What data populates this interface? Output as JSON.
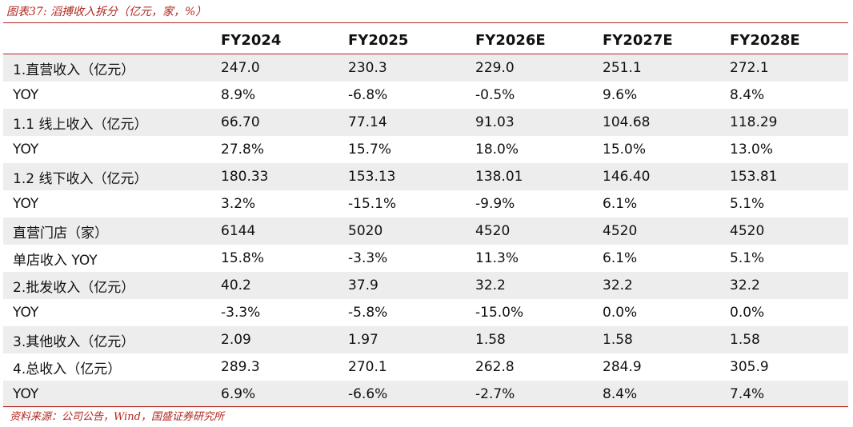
{
  "caption": "图表37: 滔搏收入拆分（亿元，家，%）",
  "table": {
    "header": [
      "",
      "FY2024",
      "FY2025",
      "FY2026E",
      "FY2027E",
      "FY2028E"
    ],
    "rows": [
      {
        "label": "1.直营收入（亿元）",
        "values": [
          "247.0",
          "230.3",
          "229.0",
          "251.1",
          "272.1"
        ]
      },
      {
        "label": "YOY",
        "values": [
          "8.9%",
          "-6.8%",
          "-0.5%",
          "9.6%",
          "8.4%"
        ]
      },
      {
        "label": "1.1  线上收入（亿元）",
        "values": [
          "66.70",
          "77.14",
          "91.03",
          "104.68",
          "118.29"
        ]
      },
      {
        "label": "YOY",
        "values": [
          "27.8%",
          "15.7%",
          "18.0%",
          "15.0%",
          "13.0%"
        ]
      },
      {
        "label": "1.2  线下收入（亿元）",
        "values": [
          "180.33",
          "153.13",
          "138.01",
          "146.40",
          "153.81"
        ]
      },
      {
        "label": "YOY",
        "values": [
          "3.2%",
          "-15.1%",
          "-9.9%",
          "6.1%",
          "5.1%"
        ]
      },
      {
        "label": "直营门店（家）",
        "values": [
          "6144",
          "5020",
          "4520",
          "4520",
          "4520"
        ]
      },
      {
        "label": "单店收入 YOY",
        "values": [
          "15.8%",
          "-3.3%",
          "11.3%",
          "6.1%",
          "5.1%"
        ]
      },
      {
        "label": "2.批发收入（亿元）",
        "values": [
          "40.2",
          "37.9",
          "32.2",
          "32.2",
          "32.2"
        ]
      },
      {
        "label": "YOY",
        "values": [
          "-3.3%",
          "-5.8%",
          "-15.0%",
          "0.0%",
          "0.0%"
        ]
      },
      {
        "label": "3.其他收入（亿元）",
        "values": [
          "2.09",
          "1.97",
          "1.58",
          "1.58",
          "1.58"
        ]
      },
      {
        "label": "4.总收入（亿元）",
        "values": [
          "289.3",
          "270.1",
          "262.8",
          "284.9",
          "305.9"
        ]
      },
      {
        "label": "YOY",
        "values": [
          "6.9%",
          "-6.6%",
          "-2.7%",
          "8.4%",
          "7.4%"
        ]
      }
    ]
  },
  "source": "资料来源：公司公告，Wind，国盛证券研究所",
  "colors": {
    "accent": "#b0271f",
    "row_shade": "#ededed",
    "text": "#111111"
  }
}
